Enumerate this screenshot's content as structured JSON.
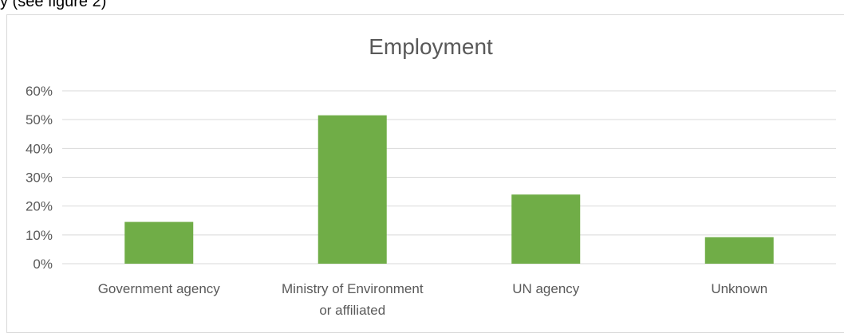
{
  "caption_fragment": "y (see figure 2)",
  "chart_data": {
    "type": "bar",
    "title": "Employment",
    "categories": [
      [
        "Government agency"
      ],
      [
        "Ministry of Environment",
        "or affiliated"
      ],
      [
        "UN agency"
      ],
      [
        "Unknown"
      ]
    ],
    "values": [
      14.5,
      51.5,
      24,
      9.2
    ],
    "ylim": [
      0,
      60
    ],
    "yticks": [
      0,
      10,
      20,
      30,
      40,
      50,
      60
    ],
    "ytick_labels": [
      "0%",
      "10%",
      "20%",
      "30%",
      "40%",
      "50%",
      "60%"
    ],
    "grid": true,
    "bar_color": "#70ad47",
    "grid_color": "#d9d9d9",
    "text_color": "#595959"
  }
}
